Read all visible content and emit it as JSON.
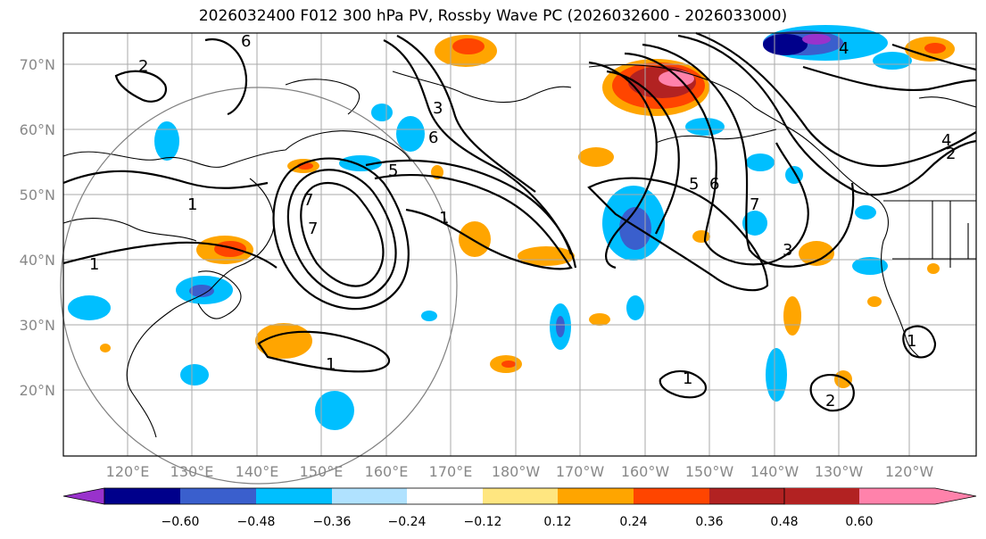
{
  "title": "2026032400 F012 300 hPa PV, Rossby Wave PC (2026032600 - 2026033000)",
  "lat_labels": [
    "70°N",
    "60°N",
    "50°N",
    "40°N",
    "30°N",
    "20°N"
  ],
  "lon_labels": [
    "120°E",
    "130°E",
    "140°E",
    "150°E",
    "160°E",
    "170°E",
    "180°W",
    "170°W",
    "160°W",
    "150°W",
    "140°W",
    "130°W",
    "120°W"
  ],
  "colorbar": {
    "ticks": [
      "−0.60",
      "−0.48",
      "−0.36",
      "−0.24",
      "−0.12",
      "0.12",
      "0.24",
      "0.36",
      "0.48",
      "0.60"
    ],
    "colors": [
      "#9932cc",
      "#00008b",
      "#3a5fcd",
      "#00bfff",
      "#b0e2ff",
      "#ffffff",
      "#ffe680",
      "#ffa500",
      "#ff4500",
      "#b22222",
      "#ff82ab"
    ]
  },
  "contour_labels": [
    "1",
    "1",
    "1",
    "1",
    "2",
    "2",
    "3",
    "3",
    "4",
    "4",
    "5",
    "5",
    "6",
    "6",
    "6",
    "7",
    "7",
    "7",
    "1",
    "1",
    "2"
  ],
  "palette": {
    "pos_light": "#ffe680",
    "pos": "#ffa500",
    "pos_strong": "#ff4500",
    "pos_dark": "#b22222",
    "pos_max": "#ff82ab",
    "neg_light": "#b0e2ff",
    "neg": "#00bfff",
    "neg_strong": "#3a5fcd",
    "neg_dark": "#00008b",
    "neg_max": "#9932cc"
  }
}
